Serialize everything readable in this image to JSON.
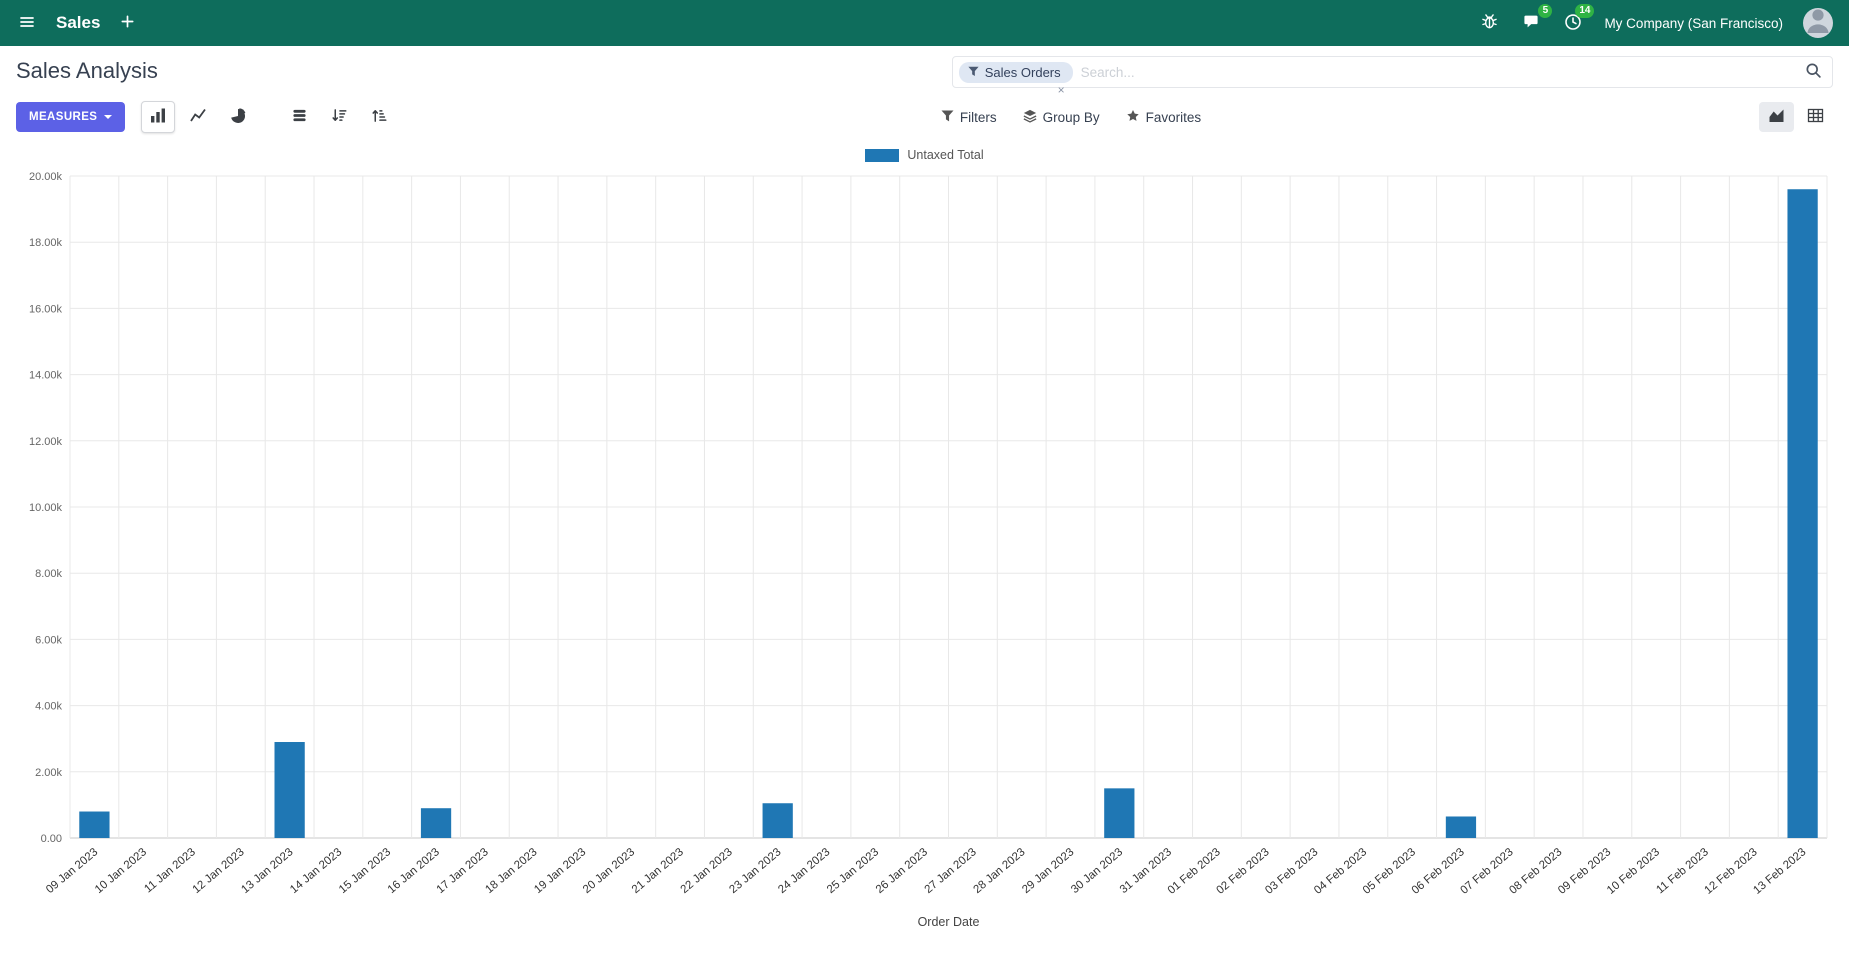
{
  "topbar": {
    "app_name": "Sales",
    "company_name": "My Company (San Francisco)",
    "messages_badge": "5",
    "activities_badge": "14"
  },
  "page": {
    "title": "Sales Analysis"
  },
  "searchbar": {
    "facet": "Sales Orders",
    "facet_remove": "×",
    "placeholder": "Search..."
  },
  "toolbar": {
    "measures": "MEASURES",
    "filters": "Filters",
    "group_by": "Group By",
    "favorites": "Favorites"
  },
  "colors": {
    "topbar_bg": "#0e6d5c",
    "primary": "#5c61e6",
    "bar": "#1f77b4",
    "badge_bg": "#2fb344",
    "facet_bg": "#dfe7f3"
  },
  "chart_data": {
    "type": "bar",
    "title": "",
    "xlabel": "Order Date",
    "ylabel": "",
    "ylim": [
      0,
      20000
    ],
    "ytick_step": 2000,
    "ytick_labels": [
      "0.00",
      "2.00k",
      "4.00k",
      "6.00k",
      "8.00k",
      "10.00k",
      "12.00k",
      "14.00k",
      "16.00k",
      "18.00k",
      "20.00k"
    ],
    "grid": true,
    "legend_position": "top",
    "categories": [
      "09 Jan 2023",
      "10 Jan 2023",
      "11 Jan 2023",
      "12 Jan 2023",
      "13 Jan 2023",
      "14 Jan 2023",
      "15 Jan 2023",
      "16 Jan 2023",
      "17 Jan 2023",
      "18 Jan 2023",
      "19 Jan 2023",
      "20 Jan 2023",
      "21 Jan 2023",
      "22 Jan 2023",
      "23 Jan 2023",
      "24 Jan 2023",
      "25 Jan 2023",
      "26 Jan 2023",
      "27 Jan 2023",
      "28 Jan 2023",
      "29 Jan 2023",
      "30 Jan 2023",
      "31 Jan 2023",
      "01 Feb 2023",
      "02 Feb 2023",
      "03 Feb 2023",
      "04 Feb 2023",
      "05 Feb 2023",
      "06 Feb 2023",
      "07 Feb 2023",
      "08 Feb 2023",
      "09 Feb 2023",
      "10 Feb 2023",
      "11 Feb 2023",
      "12 Feb 2023",
      "13 Feb 2023"
    ],
    "series": [
      {
        "name": "Untaxed Total",
        "color": "#1f77b4",
        "values": [
          800,
          0,
          0,
          0,
          2900,
          0,
          0,
          900,
          0,
          0,
          0,
          0,
          0,
          0,
          1050,
          0,
          0,
          0,
          0,
          0,
          0,
          1500,
          0,
          0,
          0,
          0,
          0,
          0,
          650,
          0,
          0,
          0,
          0,
          0,
          0,
          19600
        ]
      }
    ]
  }
}
